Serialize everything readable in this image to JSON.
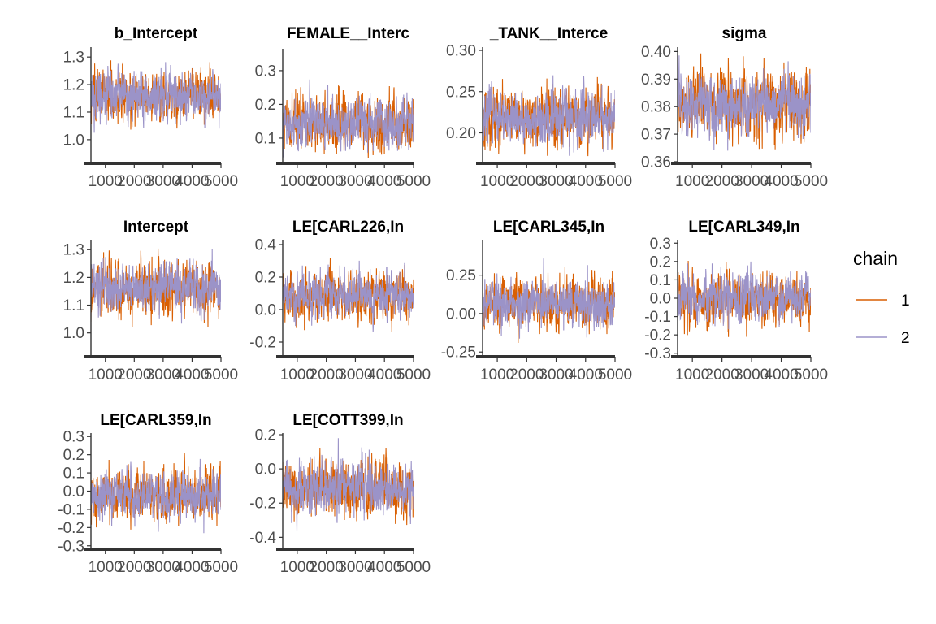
{
  "colors": {
    "chain1": "#D95F02",
    "chain2": "#9B93C8",
    "axis": "#333333",
    "text": "#4d4d4d"
  },
  "legend": {
    "title": "chain",
    "items": [
      {
        "label": "1",
        "color": "#D95F02"
      },
      {
        "label": "2",
        "color": "#9B93C8"
      }
    ]
  },
  "chart_data": [
    {
      "type": "line",
      "title": "b_Intercept",
      "x_range": [
        501,
        5000
      ],
      "xticks": [
        "1000",
        "2000",
        "3000",
        "4000",
        "5000"
      ],
      "ylim": [
        0.92,
        1.33
      ],
      "yticks": [
        "1.0",
        "1.1",
        "1.2",
        "1.3"
      ],
      "ytick_values": [
        1.0,
        1.1,
        1.2,
        1.3
      ],
      "series": [
        {
          "name": "1",
          "mean": 1.16,
          "sd": 0.045,
          "min": 1.02,
          "max": 1.31
        },
        {
          "name": "2",
          "mean": 1.16,
          "sd": 0.04,
          "min": 0.93,
          "max": 1.31
        }
      ]
    },
    {
      "type": "line",
      "title": "FEMALE__Interc",
      "x_range": [
        501,
        5000
      ],
      "xticks": [
        "1000",
        "2000",
        "3000",
        "4000",
        "5000"
      ],
      "ylim": [
        0.03,
        0.36
      ],
      "yticks": [
        "0.1",
        "0.2",
        "0.3"
      ],
      "ytick_values": [
        0.1,
        0.2,
        0.3
      ],
      "series": [
        {
          "name": "1",
          "mean": 0.14,
          "sd": 0.038,
          "min": 0.04,
          "max": 0.35
        },
        {
          "name": "2",
          "mean": 0.145,
          "sd": 0.035,
          "min": 0.03,
          "max": 0.33
        }
      ]
    },
    {
      "type": "line",
      "title": "_TANK__Interce",
      "x_range": [
        501,
        5000
      ],
      "xticks": [
        "1000",
        "2000",
        "3000",
        "4000",
        "5000"
      ],
      "ylim": [
        0.165,
        0.302
      ],
      "yticks": [
        "0.20",
        "0.25",
        "0.30"
      ],
      "ytick_values": [
        0.2,
        0.25,
        0.3
      ],
      "series": [
        {
          "name": "1",
          "mean": 0.218,
          "sd": 0.016,
          "min": 0.167,
          "max": 0.3
        },
        {
          "name": "2",
          "mean": 0.218,
          "sd": 0.015,
          "min": 0.17,
          "max": 0.29
        }
      ]
    },
    {
      "type": "line",
      "title": "sigma",
      "x_range": [
        501,
        5000
      ],
      "xticks": [
        "1000",
        "2000",
        "3000",
        "4000",
        "5000"
      ],
      "ylim": [
        0.36,
        0.401
      ],
      "yticks": [
        "0.36",
        "0.37",
        "0.38",
        "0.39",
        "0.40"
      ],
      "ytick_values": [
        0.36,
        0.37,
        0.38,
        0.39,
        0.4
      ],
      "series": [
        {
          "name": "1",
          "mean": 0.381,
          "sd": 0.0055,
          "min": 0.362,
          "max": 0.4
        },
        {
          "name": "2",
          "mean": 0.381,
          "sd": 0.005,
          "min": 0.364,
          "max": 0.399
        }
      ]
    },
    {
      "type": "line",
      "title": "Intercept",
      "x_range": [
        501,
        5000
      ],
      "xticks": [
        "1000",
        "2000",
        "3000",
        "4000",
        "5000"
      ],
      "ylim": [
        0.92,
        1.33
      ],
      "yticks": [
        "1.0",
        "1.1",
        "1.2",
        "1.3"
      ],
      "ytick_values": [
        1.0,
        1.1,
        1.2,
        1.3
      ],
      "series": [
        {
          "name": "1",
          "mean": 1.16,
          "sd": 0.045,
          "min": 1.02,
          "max": 1.31
        },
        {
          "name": "2",
          "mean": 1.16,
          "sd": 0.04,
          "min": 0.93,
          "max": 1.31
        }
      ]
    },
    {
      "type": "line",
      "title": "LE[CARL226,In",
      "x_range": [
        501,
        5000
      ],
      "xticks": [
        "1000",
        "2000",
        "3000",
        "4000",
        "5000"
      ],
      "ylim": [
        -0.28,
        0.42
      ],
      "yticks": [
        "-0.2",
        "0.0",
        "0.2",
        "0.4"
      ],
      "ytick_values": [
        -0.2,
        0.0,
        0.2,
        0.4
      ],
      "series": [
        {
          "name": "1",
          "mean": 0.08,
          "sd": 0.07,
          "min": -0.26,
          "max": 0.36
        },
        {
          "name": "2",
          "mean": 0.09,
          "sd": 0.065,
          "min": -0.2,
          "max": 0.4
        }
      ]
    },
    {
      "type": "line",
      "title": "LE[CARL345,In",
      "x_range": [
        501,
        5000
      ],
      "xticks": [
        "1000",
        "2000",
        "3000",
        "4000",
        "5000"
      ],
      "ylim": [
        -0.27,
        0.47
      ],
      "yticks": [
        "-0.25",
        "0.00",
        "0.25"
      ],
      "ytick_values": [
        -0.25,
        0.0,
        0.25
      ],
      "series": [
        {
          "name": "1",
          "mean": 0.07,
          "sd": 0.075,
          "min": -0.25,
          "max": 0.44
        },
        {
          "name": "2",
          "mean": 0.07,
          "sd": 0.07,
          "min": -0.24,
          "max": 0.4
        }
      ]
    },
    {
      "type": "line",
      "title": "LE[CARL349,In",
      "x_range": [
        501,
        5000
      ],
      "xticks": [
        "1000",
        "2000",
        "3000",
        "4000",
        "5000"
      ],
      "ylim": [
        -0.31,
        0.31
      ],
      "yticks": [
        "-0.3",
        "-0.2",
        "-0.1",
        "0.0",
        "0.1",
        "0.2",
        "0.3"
      ],
      "ytick_values": [
        -0.3,
        -0.2,
        -0.1,
        0.0,
        0.1,
        0.2,
        0.3
      ],
      "series": [
        {
          "name": "1",
          "mean": 0.0,
          "sd": 0.065,
          "min": -0.28,
          "max": 0.28
        },
        {
          "name": "2",
          "mean": 0.01,
          "sd": 0.06,
          "min": -0.25,
          "max": 0.3
        }
      ]
    },
    {
      "type": "line",
      "title": "LE[CARL359,In",
      "x_range": [
        501,
        5000
      ],
      "xticks": [
        "1000",
        "2000",
        "3000",
        "4000",
        "5000"
      ],
      "ylim": [
        -0.31,
        0.31
      ],
      "yticks": [
        "-0.3",
        "-0.2",
        "-0.1",
        "0.0",
        "0.1",
        "0.2",
        "0.3"
      ],
      "ytick_values": [
        -0.3,
        -0.2,
        -0.1,
        0.0,
        0.1,
        0.2,
        0.3
      ],
      "series": [
        {
          "name": "1",
          "mean": -0.01,
          "sd": 0.065,
          "min": -0.27,
          "max": 0.28
        },
        {
          "name": "2",
          "mean": -0.02,
          "sd": 0.06,
          "min": -0.3,
          "max": 0.25
        }
      ]
    },
    {
      "type": "line",
      "title": "LE[COTT399,In",
      "x_range": [
        501,
        5000
      ],
      "xticks": [
        "1000",
        "2000",
        "3000",
        "4000",
        "5000"
      ],
      "ylim": [
        -0.46,
        0.2
      ],
      "yticks": [
        "-0.4",
        "-0.2",
        "0.0",
        "0.2"
      ],
      "ytick_values": [
        -0.4,
        -0.2,
        0.0,
        0.2
      ],
      "series": [
        {
          "name": "1",
          "mean": -0.12,
          "sd": 0.075,
          "min": -0.44,
          "max": 0.12
        },
        {
          "name": "2",
          "mean": -0.11,
          "sd": 0.07,
          "min": -0.38,
          "max": 0.18
        }
      ]
    }
  ]
}
